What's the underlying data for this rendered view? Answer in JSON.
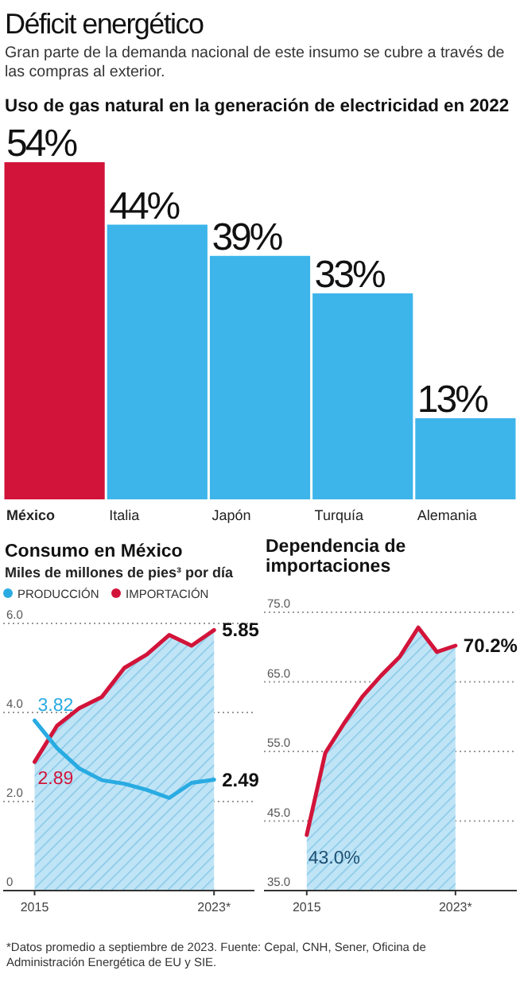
{
  "chart_data": [
    {
      "type": "other",
      "title": "Déficit energético",
      "subtitle": "Gran parte de la demanda nacional de este insumo se cubre a través de las compras al exterior."
    },
    {
      "type": "bar",
      "title": "Uso de gas natural en la generación de electricidad en 2022",
      "categories": [
        "México",
        "Italia",
        "Japón",
        "Turquía",
        "Alemania"
      ],
      "values": [
        54,
        44,
        39,
        33,
        13
      ],
      "colors": [
        "#d2143a",
        "#3db5ea",
        "#3db5ea",
        "#3db5ea",
        "#3db5ea"
      ],
      "value_labels": [
        "54%",
        "44%",
        "39%",
        "33%",
        "13%"
      ]
    },
    {
      "type": "line",
      "title": "Consumo en México",
      "subtitle": "Miles de millones de pies³ por día",
      "x": [
        2015,
        2016,
        2017,
        2018,
        2019,
        2020,
        2021,
        2022,
        2023
      ],
      "xlim": [
        2013.6,
        2024.8
      ],
      "xticks": [
        2015,
        {
          "value": 2023,
          "label": "2023*"
        }
      ],
      "ylim": [
        0,
        6
      ],
      "yticks": [
        0,
        {
          "value": 2,
          "label": "2.0"
        },
        {
          "value": 4,
          "label": "4.0"
        },
        {
          "value": 6,
          "label": "6.0"
        }
      ],
      "grid": "y",
      "legend": "top left",
      "series": [
        {
          "name": "PRODUCCIÓN",
          "type": "line",
          "color": "#29abe2",
          "values": [
            3.82,
            3.2,
            2.74,
            2.48,
            2.4,
            2.26,
            2.08,
            2.42,
            2.49
          ],
          "value_labels": [
            "3.82",
            null,
            null,
            null,
            null,
            null,
            null,
            null,
            "2.49"
          ]
        },
        {
          "name": "IMPORTACIÓN",
          "type": "area",
          "color": "#d2143a",
          "values": [
            2.89,
            3.7,
            4.1,
            4.35,
            5.0,
            5.3,
            5.74,
            5.5,
            5.85
          ],
          "value_labels": [
            "2.89",
            null,
            null,
            null,
            null,
            null,
            null,
            null,
            "5.85"
          ]
        }
      ]
    },
    {
      "type": "line",
      "title": "Dependencia de importaciones",
      "x": [
        2015,
        2016,
        2017,
        2018,
        2019,
        2020,
        2021,
        2022,
        2023
      ],
      "xlim": [
        2012.7,
        2026.3
      ],
      "xticks": [
        2015,
        {
          "value": 2023,
          "label": "2023*"
        }
      ],
      "ylim": [
        35,
        75
      ],
      "yticks": [
        {
          "value": 35,
          "label": "35.0"
        },
        {
          "value": 45,
          "label": "45.0"
        },
        {
          "value": 55,
          "label": "55.0"
        },
        {
          "value": 65,
          "label": "65.0"
        },
        {
          "value": 75,
          "label": "75.0"
        }
      ],
      "grid": "y",
      "series": [
        {
          "type": "area",
          "color": "#d2143a",
          "values": [
            43.0,
            54.8,
            59.0,
            62.9,
            65.9,
            68.6,
            72.8,
            69.3,
            70.2
          ],
          "value_labels": [
            "43.0%",
            null,
            null,
            null,
            null,
            null,
            null,
            null,
            "70.2%"
          ]
        }
      ],
      "annotations": [
        "*Datos promedio a septiembre de 2023. Fuente: Cepal, CNH, Sener, Oficina de Administración Energética de EU y SIE."
      ]
    }
  ]
}
